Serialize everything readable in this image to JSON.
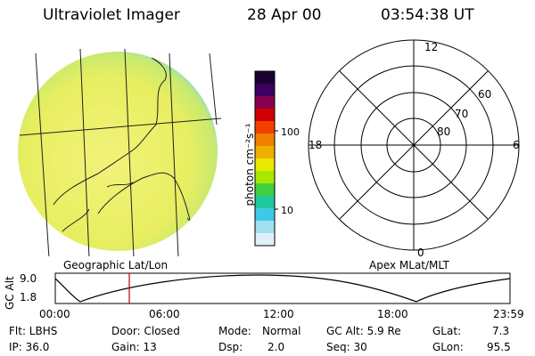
{
  "header": {
    "title": "Ultraviolet Imager",
    "date": "28 Apr 00",
    "time": "03:54:38 UT"
  },
  "image_panel": {
    "caption": "Geographic Lat/Lon"
  },
  "colorbar": {
    "unit_label": "photon cm⁻²s⁻¹",
    "tick_labels": [
      "100",
      "10"
    ],
    "colors": [
      "#1a0030",
      "#3d0060",
      "#8a0050",
      "#d00000",
      "#f04000",
      "#f08000",
      "#f0b000",
      "#e8e800",
      "#a8e800",
      "#40d040",
      "#20c8a0",
      "#40c8e8",
      "#a0e0f0",
      "#e0f0f8"
    ]
  },
  "polar_panel": {
    "caption": "Apex MLat/MLT",
    "mlt_labels": {
      "top": "12",
      "bottom": "0",
      "left": "18",
      "right": "6"
    },
    "lat_labels": [
      "60",
      "70",
      "80"
    ]
  },
  "altitude_plot": {
    "ylabel": "GC Alt",
    "yticks": [
      "9.0",
      "1.8"
    ],
    "xticks": [
      "00:00",
      "06:00",
      "12:00",
      "18:00",
      "23:59"
    ],
    "current_time_marker": "03:54"
  },
  "info": {
    "row1": {
      "flt": "Flt: LBHS",
      "door": "Door: Closed",
      "mode_label": "Mode:",
      "mode_value": "Normal",
      "gc_alt": "GC Alt: 5.9 Re",
      "glat_label": "GLat:",
      "glat_value": "7.3"
    },
    "row2": {
      "ip": "IP: 36.0",
      "gain": "Gain: 13",
      "dsp_label": "Dsp:",
      "dsp_value": "2.0",
      "seq": "Seq: 30",
      "glon_label": "GLon:",
      "glon_value": "95.5"
    }
  },
  "colors": {
    "disk_fill": "#eef066",
    "disk_limb": "#7fd8e8",
    "marker": "#c00000"
  }
}
